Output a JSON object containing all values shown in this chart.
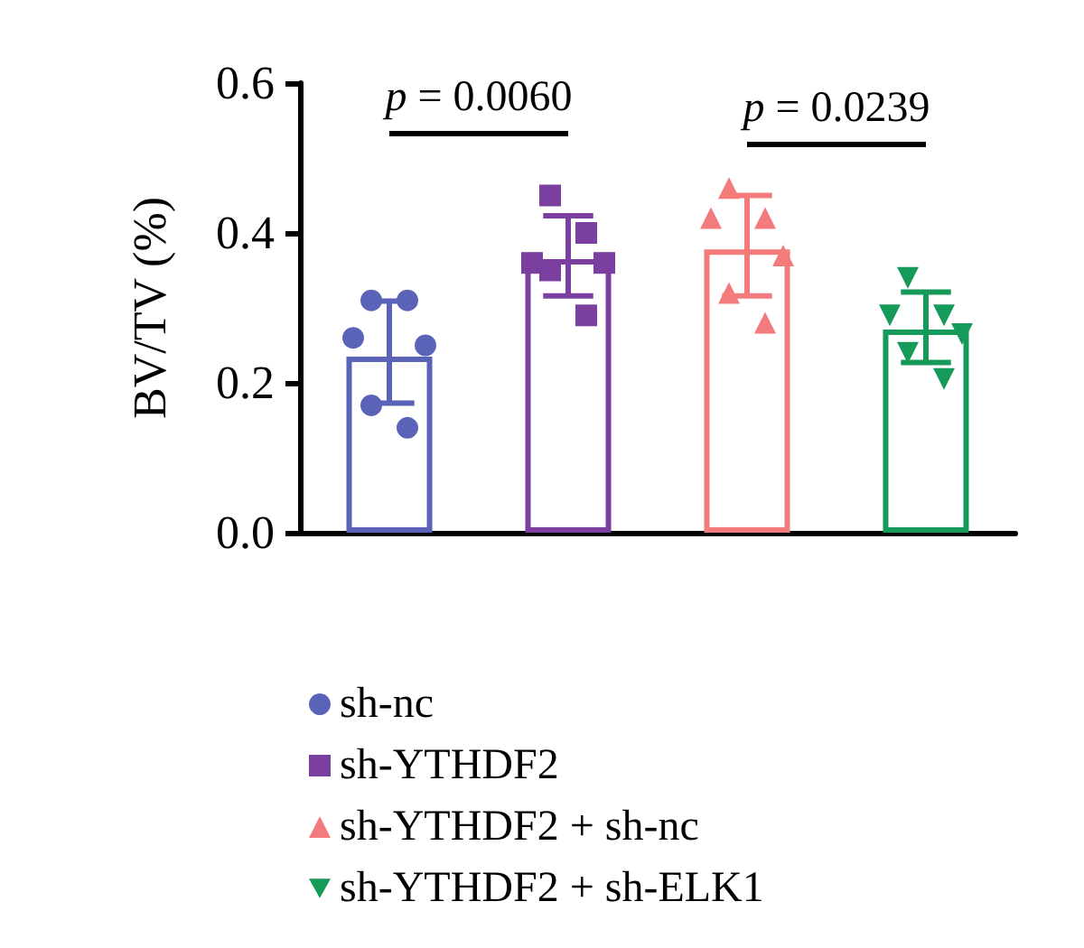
{
  "chart_data": {
    "type": "bar",
    "ylabel": "BV/TV (%)",
    "categories": [
      null,
      null,
      null,
      null
    ],
    "tick_labels": "y",
    "series": [
      {
        "colors": [
          "#5b63b8",
          "#7b3fa0",
          "#f47b7b",
          "#169a5a"
        ],
        "values": [
          0.235,
          0.365,
          0.378,
          0.271
        ],
        "errors": [
          [
            0.173,
            0.309
          ],
          [
            0.316,
            0.423
          ],
          [
            0.316,
            0.45
          ],
          [
            0.227,
            0.321
          ]
        ]
      },
      {
        "type": "scatter",
        "name": "sh-nc",
        "color": "#5b63b8",
        "marker": "circle",
        "values": [
          0.31,
          null,
          null,
          null
        ]
      },
      {
        "type": "scatter",
        "color": "#5b63b8",
        "marker": "circle",
        "values": [
          0.31,
          null,
          null,
          null
        ]
      },
      {
        "type": "scatter",
        "color": "#5b63b8",
        "marker": "circle",
        "values": [
          0.26,
          null,
          null,
          null
        ]
      },
      {
        "type": "scatter",
        "color": "#5b63b8",
        "marker": "circle",
        "values": [
          0.25,
          null,
          null,
          null
        ]
      },
      {
        "type": "scatter",
        "color": "#5b63b8",
        "marker": "circle",
        "values": [
          0.17,
          null,
          null,
          null
        ]
      },
      {
        "type": "scatter",
        "color": "#5b63b8",
        "marker": "circle",
        "values": [
          0.14,
          null,
          null,
          null
        ]
      },
      {
        "type": "scatter",
        "name": "sh-YTHDF2",
        "color": "#7b3fa0",
        "marker": "square",
        "values": [
          null,
          0.45,
          null,
          null
        ]
      },
      {
        "type": "scatter",
        "color": "#7b3fa0",
        "marker": "square",
        "values": [
          null,
          0.4,
          null,
          null
        ]
      },
      {
        "type": "scatter",
        "color": "#7b3fa0",
        "marker": "square",
        "values": [
          null,
          0.36,
          null,
          null
        ]
      },
      {
        "type": "scatter",
        "color": "#7b3fa0",
        "marker": "square",
        "values": [
          null,
          0.36,
          null,
          null
        ]
      },
      {
        "type": "scatter",
        "color": "#7b3fa0",
        "marker": "square",
        "values": [
          null,
          0.35,
          null,
          null
        ]
      },
      {
        "type": "scatter",
        "color": "#7b3fa0",
        "marker": "square",
        "values": [
          null,
          0.29,
          null,
          null
        ]
      },
      {
        "type": "scatter",
        "name": "sh-YTHDF2 + sh-nc",
        "color": "#f47b7b",
        "marker": "triangle",
        "values": [
          null,
          null,
          0.46,
          null
        ]
      },
      {
        "type": "scatter",
        "color": "#f47b7b",
        "marker": "triangle",
        "values": [
          null,
          null,
          0.42,
          null
        ]
      },
      {
        "type": "scatter",
        "color": "#f47b7b",
        "marker": "triangle",
        "values": [
          null,
          null,
          0.42,
          null
        ]
      },
      {
        "type": "scatter",
        "color": "#f47b7b",
        "marker": "triangle",
        "values": [
          null,
          null,
          0.37,
          null
        ]
      },
      {
        "type": "scatter",
        "color": "#f47b7b",
        "marker": "triangle",
        "values": [
          null,
          null,
          0.32,
          null
        ]
      },
      {
        "type": "scatter",
        "color": "#f47b7b",
        "marker": "triangle",
        "values": [
          null,
          null,
          0.28,
          null
        ]
      },
      {
        "type": "scatter",
        "name": "sh-YTHDF2 + sh-ELK1",
        "color": "#169a5a",
        "marker": "triangle-down",
        "values": [
          null,
          null,
          null,
          0.34
        ]
      },
      {
        "type": "scatter",
        "color": "#169a5a",
        "marker": "triangle-down",
        "values": [
          null,
          null,
          null,
          0.29
        ]
      },
      {
        "type": "scatter",
        "color": "#169a5a",
        "marker": "triangle-down",
        "values": [
          null,
          null,
          null,
          0.29
        ]
      },
      {
        "type": "scatter",
        "color": "#169a5a",
        "marker": "triangle-down",
        "values": [
          null,
          null,
          null,
          0.265
        ]
      },
      {
        "type": "scatter",
        "color": "#169a5a",
        "marker": "triangle-down",
        "values": [
          null,
          null,
          null,
          0.24
        ]
      },
      {
        "type": "scatter",
        "color": "#169a5a",
        "marker": "triangle-down",
        "values": [
          null,
          null,
          null,
          0.205
        ]
      }
    ],
    "ylim": [
      0,
      0.6
    ],
    "yticks": [
      {
        "value": 0,
        "label": "0.0"
      },
      {
        "value": 0.2,
        "label": "0.2"
      },
      {
        "value": 0.4,
        "label": "0.4"
      },
      {
        "value": 0.6,
        "label": "0.6"
      }
    ],
    "annotations": [
      "p = 0.0060",
      "p = 0.0239"
    ],
    "legend": "bottom",
    "grid": false
  }
}
